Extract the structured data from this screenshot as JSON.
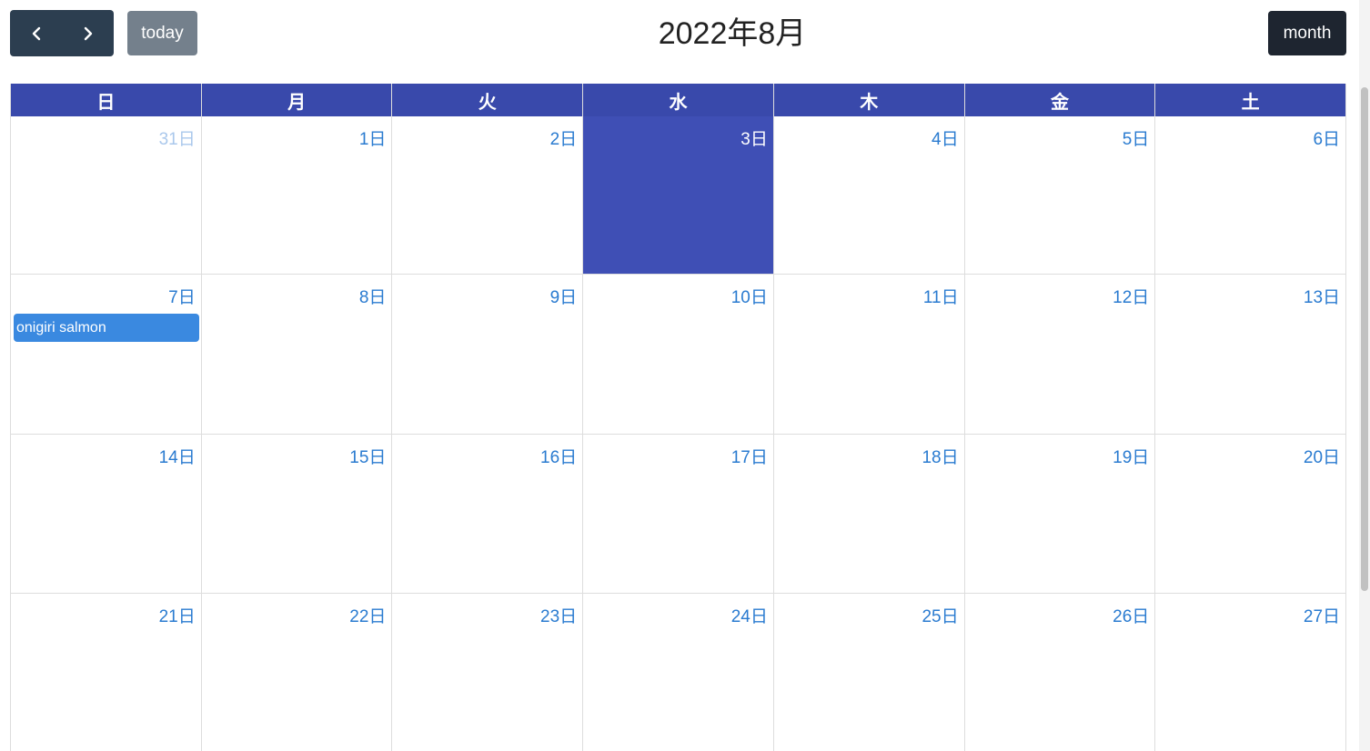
{
  "toolbar": {
    "prev_icon": "chevron-left-icon",
    "next_icon": "chevron-right-icon",
    "today_label": "today",
    "title": "2022年8月",
    "view_label": "month"
  },
  "colors": {
    "header_bg": "#3949ab",
    "today_bg": "#3f4fb5",
    "day_number": "#2a7bd0",
    "event_bg": "#3a89e0",
    "nav_button_bg": "#2c3e50",
    "today_button_bg": "#74808c",
    "month_button_bg": "#1e2530"
  },
  "calendar": {
    "weekdays": [
      "日",
      "月",
      "火",
      "水",
      "木",
      "金",
      "土"
    ],
    "weeks": [
      {
        "days": [
          {
            "label": "31日",
            "other_month": true
          },
          {
            "label": "1日"
          },
          {
            "label": "2日"
          },
          {
            "label": "3日",
            "today": true
          },
          {
            "label": "4日"
          },
          {
            "label": "5日"
          },
          {
            "label": "6日"
          }
        ]
      },
      {
        "days": [
          {
            "label": "7日",
            "event": "onigiri salmon"
          },
          {
            "label": "8日"
          },
          {
            "label": "9日"
          },
          {
            "label": "10日"
          },
          {
            "label": "11日"
          },
          {
            "label": "12日"
          },
          {
            "label": "13日"
          }
        ]
      },
      {
        "days": [
          {
            "label": "14日"
          },
          {
            "label": "15日"
          },
          {
            "label": "16日"
          },
          {
            "label": "17日"
          },
          {
            "label": "18日"
          },
          {
            "label": "19日"
          },
          {
            "label": "20日"
          }
        ]
      },
      {
        "days": [
          {
            "label": "21日"
          },
          {
            "label": "22日"
          },
          {
            "label": "23日"
          },
          {
            "label": "24日"
          },
          {
            "label": "25日"
          },
          {
            "label": "26日"
          },
          {
            "label": "27日"
          }
        ]
      }
    ]
  }
}
